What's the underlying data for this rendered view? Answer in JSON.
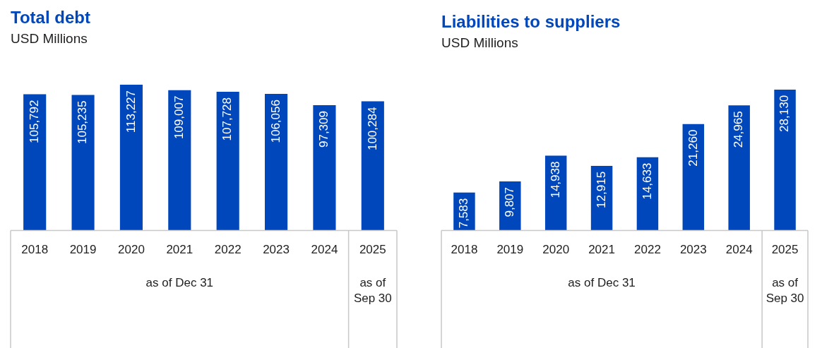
{
  "chart_data": [
    {
      "type": "bar",
      "title": "Total debt",
      "subtitle": "USD Millions",
      "categories": [
        "2018",
        "2019",
        "2020",
        "2021",
        "2022",
        "2023",
        "2024",
        "2025"
      ],
      "values": [
        105792,
        105235,
        113227,
        109007,
        107728,
        106056,
        97309,
        100284
      ],
      "value_labels": [
        "105,792",
        "105,235",
        "113,227",
        "109,007",
        "107,728",
        "106,056",
        "97,309",
        "100,284"
      ],
      "color": "#0047bb",
      "tick_labels": "x",
      "grid": false,
      "legend": false,
      "annotations": [
        "as of Dec 31",
        "as of Sep 30"
      ]
    },
    {
      "type": "bar",
      "title": "Liabilities to suppliers",
      "subtitle": "USD Millions",
      "categories": [
        "2018",
        "2019",
        "2020",
        "2021",
        "2022",
        "2023",
        "2024",
        "2025"
      ],
      "values": [
        7583,
        9807,
        14938,
        12915,
        14633,
        21260,
        24965,
        28130
      ],
      "value_labels": [
        "7,583",
        "9,807",
        "14,938",
        "12,915",
        "14,633",
        "21,260",
        "24,965",
        "28,130"
      ],
      "color": "#0047bb",
      "tick_labels": "x",
      "grid": false,
      "legend": false,
      "annotations": [
        "as of Dec 31",
        "as of Sep 30"
      ]
    }
  ]
}
